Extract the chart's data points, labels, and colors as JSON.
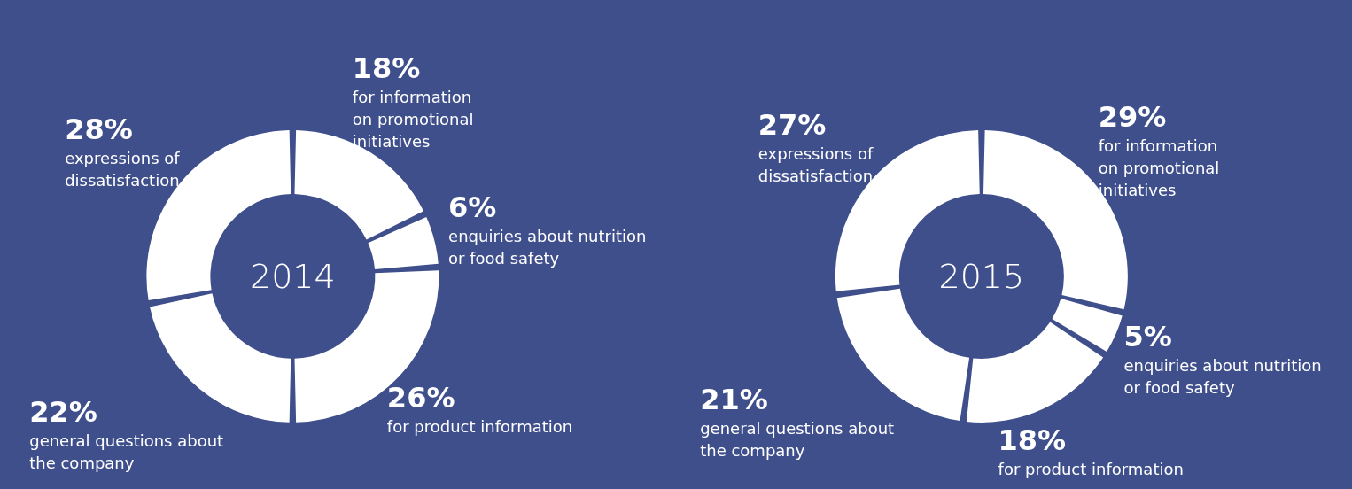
{
  "chart_data": [
    {
      "type": "donut",
      "title": "2014",
      "categories": [
        "for information on promotional initiatives",
        "enquiries about nutrition or food safety",
        "for product information",
        "general questions about the company",
        "expressions of dissatisfaction"
      ],
      "values": [
        18,
        6,
        26,
        22,
        28
      ],
      "value_labels": [
        "18%",
        "6%",
        "26%",
        "22%",
        "28%"
      ],
      "data_labels": true,
      "colors": [
        "#ffffff",
        "#ffffff",
        "#ffffff",
        "#ffffff",
        "#ffffff"
      ],
      "legend": false
    },
    {
      "type": "donut",
      "title": "2015",
      "categories": [
        "for information on promotional initiatives",
        "enquiries about nutrition or food safety",
        "for product information",
        "general questions about the company",
        "expressions of dissatisfaction"
      ],
      "values": [
        29,
        5,
        18,
        21,
        27
      ],
      "value_labels": [
        "29%",
        "5%",
        "18%",
        "21%",
        "27%"
      ],
      "data_labels": true,
      "colors": [
        "#ffffff",
        "#ffffff",
        "#ffffff",
        "#ffffff",
        "#ffffff"
      ],
      "legend": false
    }
  ]
}
